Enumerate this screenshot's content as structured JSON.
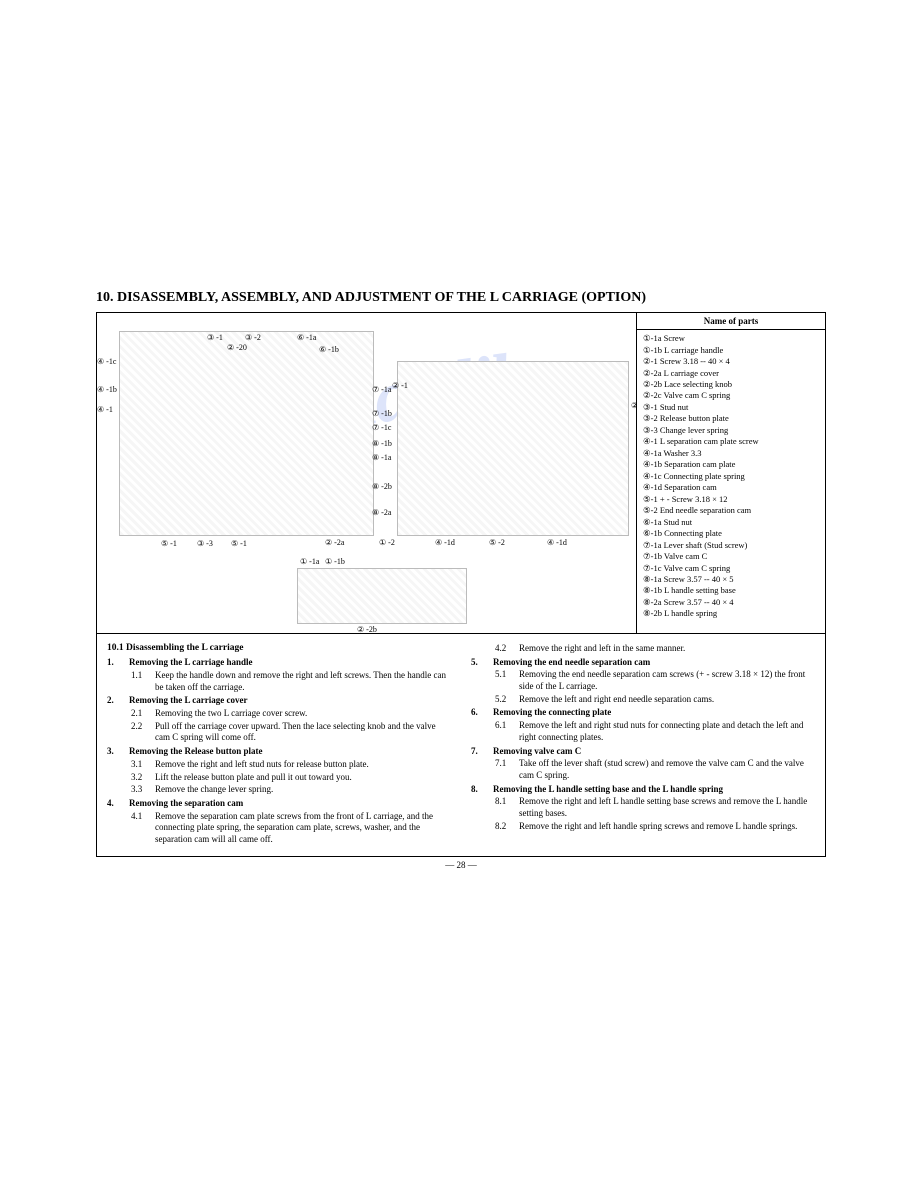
{
  "section_title": "10.  DISASSEMBLY, ASSEMBLY, AND ADJUSTMENT OF THE L CARRIAGE (OPTION)",
  "watermark": "manualslib",
  "labels": {
    "l1": "③ -1",
    "l2": "③ -2",
    "l3": "② -20",
    "l4": "⑥ -1a",
    "l5": "⑥ -1b",
    "l6": "④ -1c",
    "l7": "④ -1b",
    "l8": "④ -1",
    "l9": "⑦ -1a",
    "l10": "⑦ -1b",
    "l11": "⑦ -1c",
    "l12": "⑧ -1b",
    "l13": "⑧ -1a",
    "l14": "⑧ -2b",
    "l15": "⑧ -2a",
    "l16": "⑤ -1",
    "l17": "③ -3",
    "l18": "② -1",
    "l19": "② -2a",
    "l20": "① -2",
    "l21": "④ -1d",
    "l22": "⑤ -2",
    "l23": "② -2b",
    "l24": "① -1a",
    "l25": "① -1b"
  },
  "parts_header": "Name of parts",
  "parts": [
    "①-1a  Screw",
    "①-1b  L carriage handle",
    "②-1   Screw 3.18 -- 40 × 4",
    "②-2a  L carriage cover",
    "②-2b  Lace selecting knob",
    "②-2c  Valve cam C spring",
    "③-1   Stud nut",
    "③-2   Release button plate",
    "③-3   Change lever spring",
    "④-1   L separation cam plate screw",
    "④-1a  Washer 3.3",
    "④-1b  Separation cam plate",
    "④-1c  Connecting plate spring",
    "④-1d  Separation cam",
    "⑤-1   + - Screw 3.18 × 12",
    "⑤-2   End needle separation cam",
    "⑥-1a  Stud nut",
    "⑥-1b  Connecting plate",
    "⑦-1a  Lever shaft (Stud screw)",
    "⑦-1b  Valve cam C",
    "⑦-1c  Valve cam C spring",
    "⑧-1a  Screw 3.57 -- 40 × 5",
    "⑧-1b  L handle setting base",
    "⑧-2a  Screw 3.57 -- 40 × 4",
    "⑧-2b  L handle spring"
  ],
  "instr_heading": "10.1  Disassembling the L carriage",
  "left_steps": [
    {
      "n": "1.",
      "h": "Removing the L carriage handle",
      "subs": [
        {
          "sn": "1.1",
          "t": "Keep the handle down and remove the right and left screws. Then the handle can be taken off the carriage."
        }
      ]
    },
    {
      "n": "2.",
      "h": "Removing the L carriage cover",
      "subs": [
        {
          "sn": "2.1",
          "t": "Removing the two L carriage cover screw."
        },
        {
          "sn": "2.2",
          "t": "Pull off the carriage cover upward. Then the lace selecting knob and the valve cam C spring will come off."
        }
      ]
    },
    {
      "n": "3.",
      "h": "Removing the Release button plate",
      "subs": [
        {
          "sn": "3.1",
          "t": "Remove the right and left stud nuts for release button plate."
        },
        {
          "sn": "3.2",
          "t": "Lift the release button plate and pull it out toward you."
        },
        {
          "sn": "3.3",
          "t": "Remove the change lever spring."
        }
      ]
    },
    {
      "n": "4.",
      "h": "Removing the separation cam",
      "subs": [
        {
          "sn": "4.1",
          "t": "Remove the separation cam plate screws from the front of L carriage, and the connecting plate spring, the separation cam plate, screws, washer, and the separation cam will all came off."
        }
      ]
    }
  ],
  "right_steps": [
    {
      "n": "",
      "h": "",
      "subs": [
        {
          "sn": "4.2",
          "t": "Remove the right and left in the same manner."
        }
      ]
    },
    {
      "n": "5.",
      "h": "Removing the end needle separation cam",
      "subs": [
        {
          "sn": "5.1",
          "t": "Removing the end needle separation cam screws (+ - screw 3.18 × 12) the front side of the L carriage."
        },
        {
          "sn": "5.2",
          "t": "Remove the left and right end needle separation cams."
        }
      ]
    },
    {
      "n": "6.",
      "h": "Removing the connecting plate",
      "subs": [
        {
          "sn": "6.1",
          "t": "Remove the left and right stud nuts for connecting plate and detach the left and right connecting plates."
        }
      ]
    },
    {
      "n": "7.",
      "h": "Removing valve cam C",
      "subs": [
        {
          "sn": "7.1",
          "t": "Take off the lever shaft (stud screw) and remove the valve cam C and the valve cam C spring."
        }
      ]
    },
    {
      "n": "8.",
      "h": "Removing the L handle setting base and the L handle spring",
      "subs": [
        {
          "sn": "8.1",
          "t": "Remove the right and left L handle setting base screws and remove the L handle setting bases."
        },
        {
          "sn": "8.2",
          "t": "Remove the right and left handle spring screws and remove L handle springs."
        }
      ]
    }
  ],
  "page_number": "— 28 —"
}
